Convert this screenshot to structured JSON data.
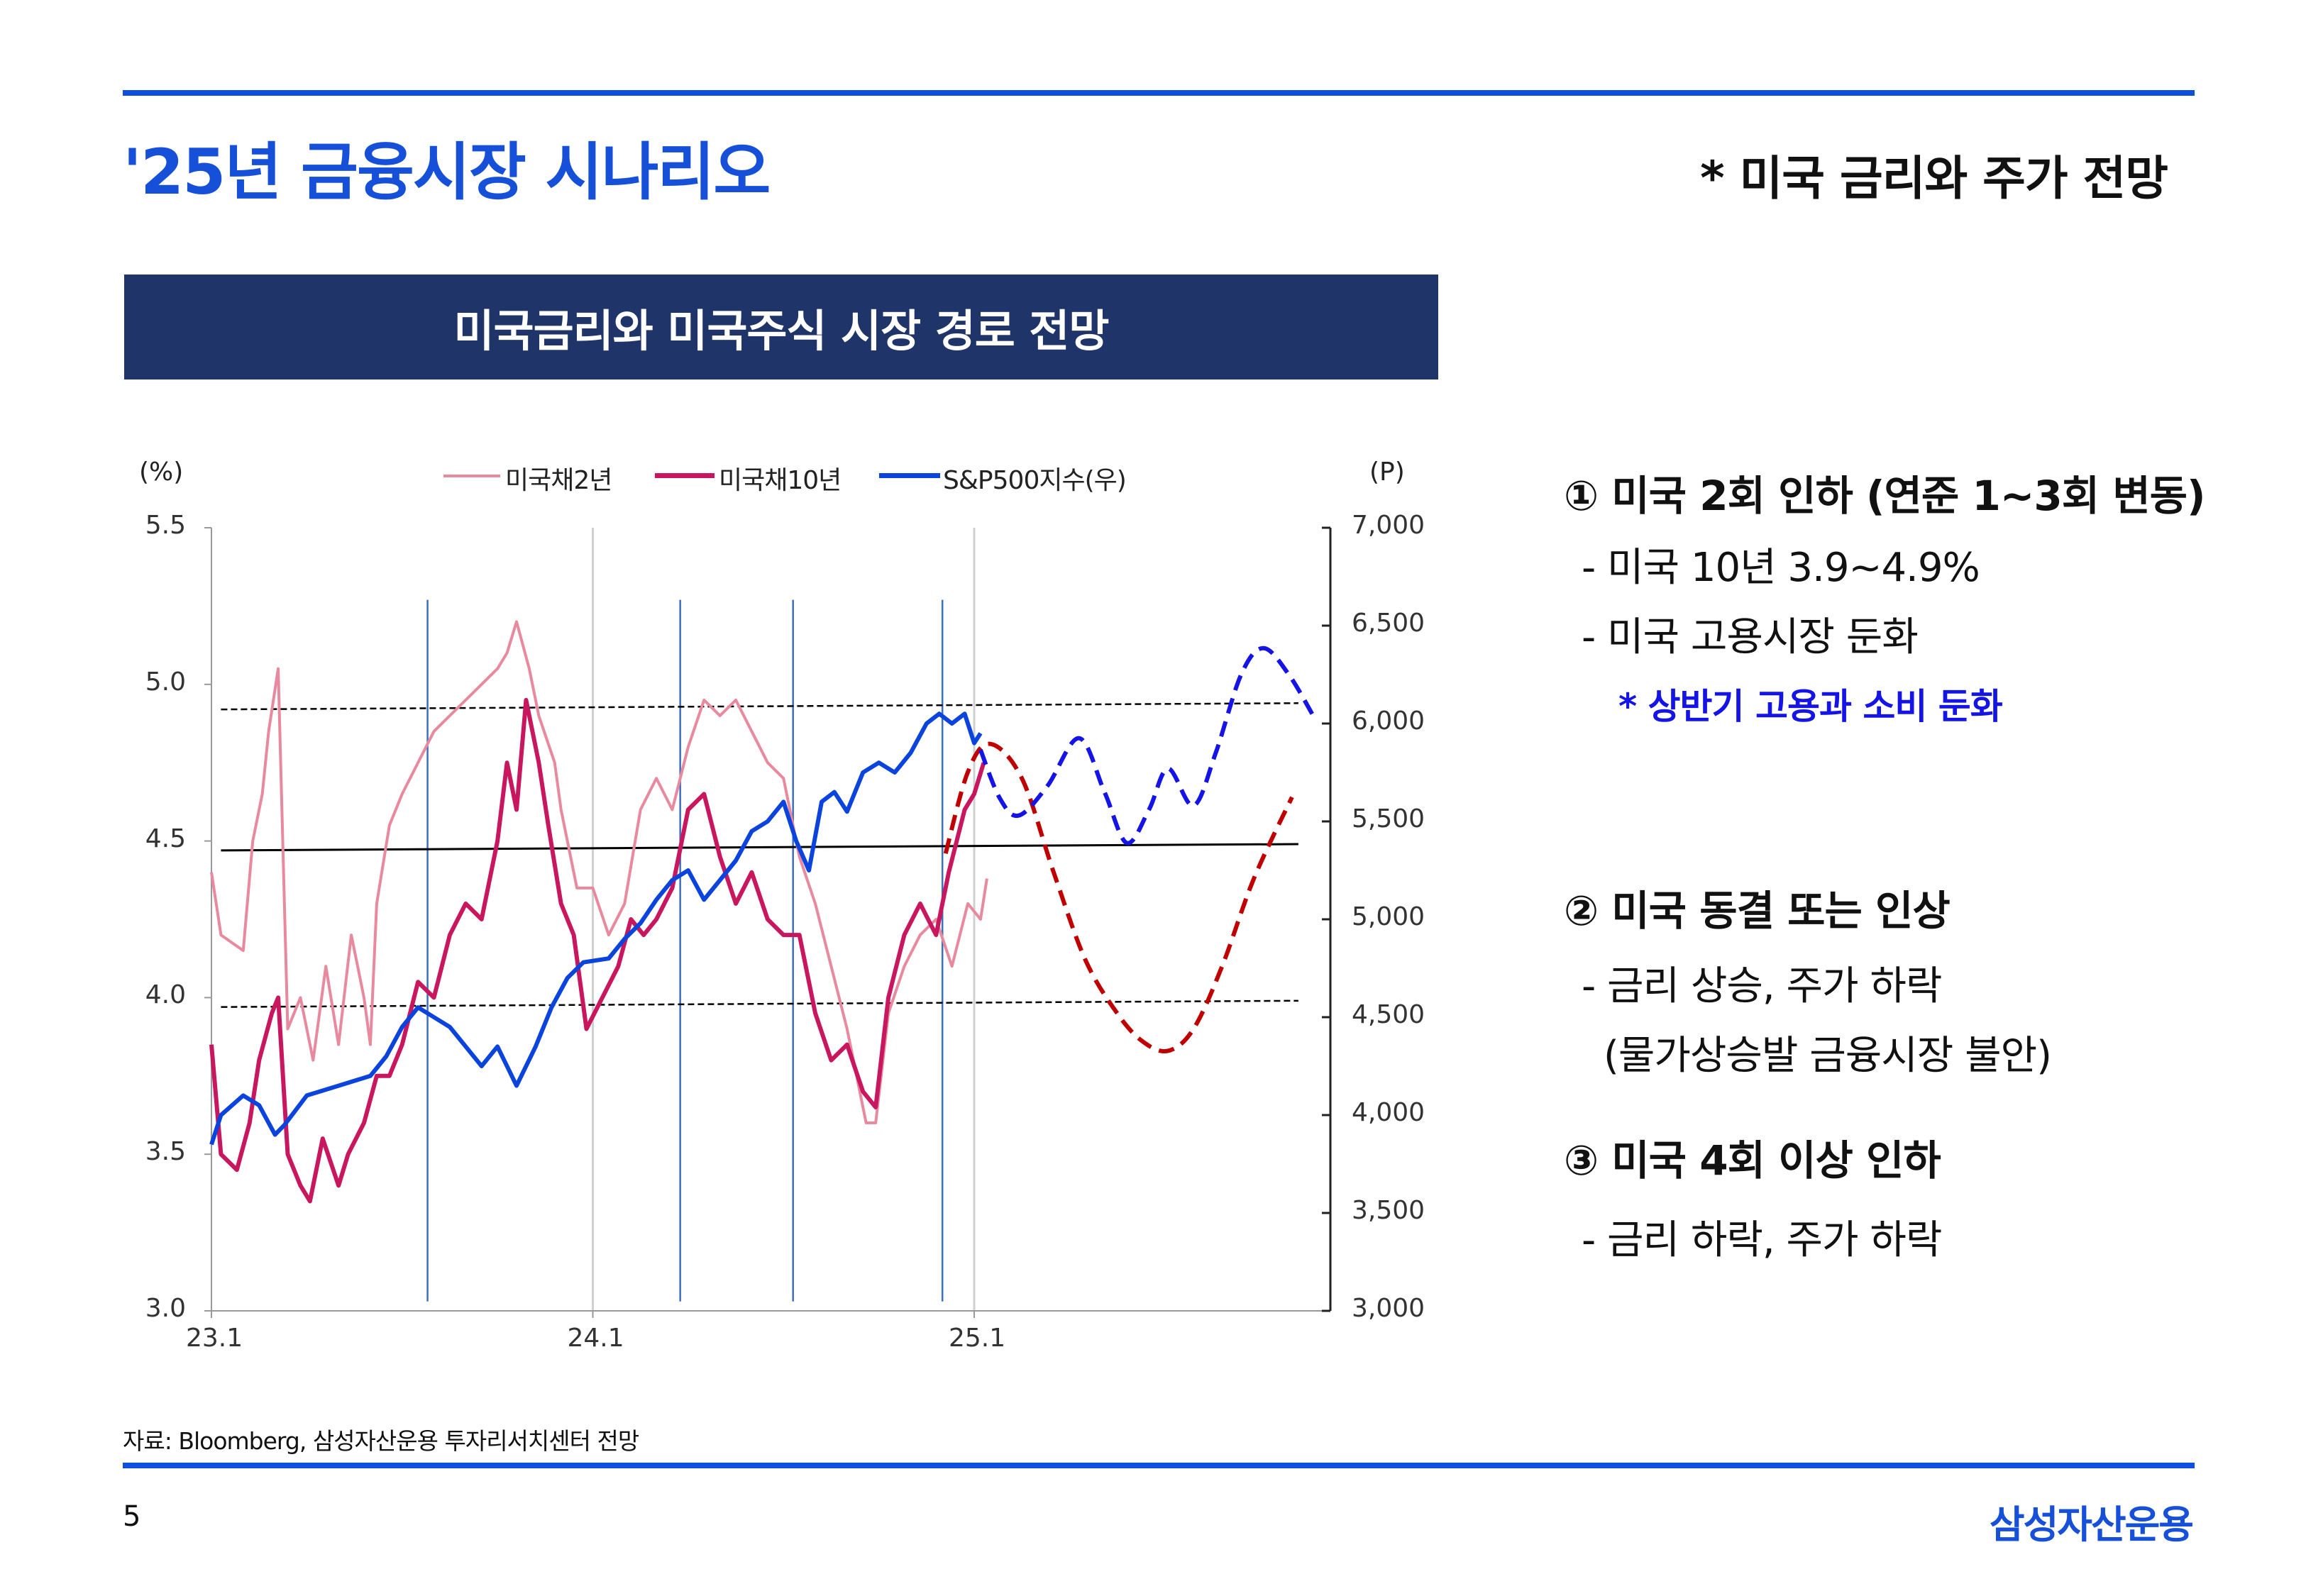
{
  "header": {
    "title": "'25년 금융시장 시나리오",
    "subtitle": "* 미국 금리와 주가 전망",
    "banner": "미국금리와 미국주식 시장 경로 전망"
  },
  "colors": {
    "accent_blue": "#0F4FE0",
    "banner_navy": "#1F3468",
    "ust2y": "#E8899E",
    "ust10y": "#C8175E",
    "sp500": "#0A44DD",
    "forecast_rate": "#C00000",
    "forecast_sp500": "#1414E6",
    "note_blue": "#1414E6"
  },
  "chart_data": {
    "type": "line",
    "left_unit": "(%)",
    "right_unit": "(P)",
    "x_unit": "months since 2023-01",
    "xlim": [
      0,
      35.2
    ],
    "ylim_left": [
      3.0,
      5.5
    ],
    "ylim_right": [
      3000,
      7000
    ],
    "x_ticks": [
      {
        "x": 0,
        "label": "23.1"
      },
      {
        "x": 12,
        "label": "24.1"
      },
      {
        "x": 24,
        "label": "25.1"
      }
    ],
    "y_ticks_left": [
      "3.0",
      "3.5",
      "4.0",
      "4.5",
      "5.0",
      "5.5"
    ],
    "y_ticks_left_values": [
      3.0,
      3.5,
      4.0,
      4.5,
      5.0,
      5.5
    ],
    "y_ticks_right": [
      "3,000",
      "3,500",
      "4,000",
      "4,500",
      "5,000",
      "5,500",
      "6,000",
      "6,500",
      "7,000"
    ],
    "y_ticks_right_values": [
      3000,
      3500,
      4000,
      4500,
      5000,
      5500,
      6000,
      6500,
      7000
    ],
    "legend": [
      "미국채2년",
      "미국채10년",
      "S&P500지수(우)"
    ],
    "legend_position": "top-center",
    "series": [
      {
        "name": "미국채2년",
        "axis": "left",
        "x": [
          0,
          0.3,
          1,
          1.3,
          1.6,
          1.8,
          2.1,
          2.4,
          2.8,
          3.2,
          3.6,
          4,
          4.4,
          4.8,
          5,
          5.2,
          5.6,
          6,
          6.5,
          7,
          7.5,
          8,
          8.5,
          9,
          9.3,
          9.6,
          10,
          10.3,
          10.8,
          11,
          11.5,
          12,
          12.5,
          13,
          13.5,
          14,
          14.5,
          15,
          15.5,
          16,
          16.5,
          17,
          17.5,
          18,
          18.5,
          19,
          19.5,
          20,
          20.3,
          20.6,
          20.9,
          21.3,
          21.8,
          22.3,
          22.8,
          23.3,
          23.8,
          24.2,
          24.4
        ],
        "values": [
          4.4,
          4.2,
          4.15,
          4.5,
          4.65,
          4.85,
          5.05,
          3.9,
          4.0,
          3.8,
          4.1,
          3.85,
          4.2,
          4.0,
          3.85,
          4.3,
          4.55,
          4.65,
          4.75,
          4.85,
          4.9,
          4.95,
          5.0,
          5.05,
          5.1,
          5.2,
          5.05,
          4.9,
          4.75,
          4.6,
          4.35,
          4.35,
          4.2,
          4.3,
          4.6,
          4.7,
          4.6,
          4.8,
          4.95,
          4.9,
          4.95,
          4.85,
          4.75,
          4.7,
          4.45,
          4.3,
          4.1,
          3.9,
          3.75,
          3.6,
          3.6,
          3.95,
          4.1,
          4.2,
          4.25,
          4.1,
          4.3,
          4.25,
          4.38
        ]
      },
      {
        "name": "미국채10년",
        "axis": "left",
        "x": [
          0,
          0.3,
          0.8,
          1.2,
          1.5,
          1.9,
          2.1,
          2.4,
          2.8,
          3.1,
          3.5,
          4,
          4.3,
          4.8,
          5.2,
          5.6,
          6,
          6.5,
          7,
          7.5,
          8,
          8.5,
          9,
          9.3,
          9.6,
          9.9,
          10.3,
          10.6,
          11,
          11.4,
          11.8,
          12.3,
          12.8,
          13.2,
          13.6,
          14,
          14.5,
          15,
          15.5,
          16,
          16.5,
          17,
          17.5,
          18,
          18.5,
          19,
          19.5,
          20,
          20.5,
          20.9,
          21.3,
          21.8,
          22.3,
          22.8,
          23.2,
          23.7,
          24,
          24.3
        ],
        "values": [
          3.85,
          3.5,
          3.45,
          3.6,
          3.8,
          3.95,
          4.0,
          3.5,
          3.4,
          3.35,
          3.55,
          3.4,
          3.5,
          3.6,
          3.75,
          3.75,
          3.85,
          4.05,
          4.0,
          4.2,
          4.3,
          4.25,
          4.5,
          4.75,
          4.6,
          4.95,
          4.75,
          4.55,
          4.3,
          4.2,
          3.9,
          4.0,
          4.1,
          4.25,
          4.2,
          4.25,
          4.35,
          4.6,
          4.65,
          4.45,
          4.3,
          4.4,
          4.25,
          4.2,
          4.2,
          3.95,
          3.8,
          3.85,
          3.7,
          3.65,
          4.0,
          4.2,
          4.3,
          4.2,
          4.4,
          4.6,
          4.65,
          4.75
        ]
      },
      {
        "name": "S&P500지수(우)",
        "axis": "right",
        "x": [
          0,
          0.3,
          1,
          1.5,
          2,
          2.3,
          3,
          4,
          5,
          5.5,
          6,
          6.5,
          7,
          7.5,
          8,
          8.5,
          9,
          9.6,
          10.2,
          10.7,
          11.2,
          11.7,
          12.5,
          13,
          13.5,
          14,
          14.5,
          15,
          15.5,
          16,
          16.5,
          17,
          17.5,
          18,
          18.4,
          18.8,
          19.2,
          19.6,
          20,
          20.5,
          21,
          21.5,
          22,
          22.5,
          22.9,
          23.3,
          23.7,
          24,
          24.2
        ],
        "values": [
          3850,
          4000,
          4100,
          4050,
          3900,
          3950,
          4100,
          4150,
          4200,
          4300,
          4450,
          4550,
          4500,
          4450,
          4350,
          4250,
          4350,
          4150,
          4350,
          4550,
          4700,
          4780,
          4800,
          4900,
          4980,
          5100,
          5200,
          5250,
          5100,
          5200,
          5300,
          5450,
          5500,
          5600,
          5400,
          5250,
          5600,
          5650,
          5550,
          5750,
          5800,
          5750,
          5850,
          6000,
          6050,
          6000,
          6050,
          5900,
          5950
        ]
      },
      {
        "name": "미국채10년 전망",
        "axis": "left",
        "style": "dashed",
        "x": [
          23.1,
          23.8,
          24.5,
          25.5,
          26.5,
          27.5,
          28.5,
          29.3,
          30.1,
          30.9,
          31.8,
          32.8,
          34.0
        ],
        "values": [
          4.46,
          4.72,
          4.81,
          4.7,
          4.4,
          4.12,
          3.95,
          3.86,
          3.83,
          3.9,
          4.1,
          4.38,
          4.64
        ]
      },
      {
        "name": "S&P500 전망",
        "axis": "right",
        "style": "dashed",
        "x": [
          24.2,
          24.8,
          25.4,
          26.3,
          27.3,
          28.1,
          28.8,
          29.5,
          30.1,
          30.9,
          31.6,
          32.4,
          33.1,
          33.9,
          34.7
        ],
        "values": [
          5865,
          5620,
          5530,
          5680,
          5925,
          5650,
          5390,
          5560,
          5770,
          5580,
          5850,
          6250,
          6385,
          6250,
          6030
        ]
      }
    ],
    "reference_lines": [
      {
        "style": "dashed",
        "axis": "left",
        "x": [
          0.3,
          34.2
        ],
        "values": [
          4.92,
          4.94
        ]
      },
      {
        "style": "dashed",
        "axis": "left",
        "x": [
          0.3,
          34.2
        ],
        "values": [
          3.97,
          3.99
        ]
      },
      {
        "style": "solid",
        "axis": "left",
        "x": [
          0.3,
          34.2
        ],
        "values": [
          4.47,
          4.49
        ]
      }
    ],
    "event_lines_x": [
      6.8,
      14.75,
      18.3,
      23.0
    ],
    "grid_lines_x": [
      12,
      24
    ]
  },
  "scenarios": [
    {
      "head": "① 미국 2회 인하 (연준 1~3회 변동)",
      "items": [
        "- 미국 10년 3.9~4.9%",
        "- 미국 고용시장 둔화"
      ],
      "note": "* 상반기 고용과 소비 둔화"
    },
    {
      "head": "② 미국 동결 또는 인상",
      "items": [
        "- 금리 상승, 주가 하락",
        "(물가상승발 금융시장 불안)"
      ]
    },
    {
      "head": "③ 미국 4회 이상 인하",
      "items": [
        "- 금리 하락, 주가 하락"
      ]
    }
  ],
  "footer": {
    "source": "자료: Bloomberg, 삼성자산운용 투자리서치센터 전망",
    "page_number": "5",
    "logo": "삼성자산운용"
  }
}
